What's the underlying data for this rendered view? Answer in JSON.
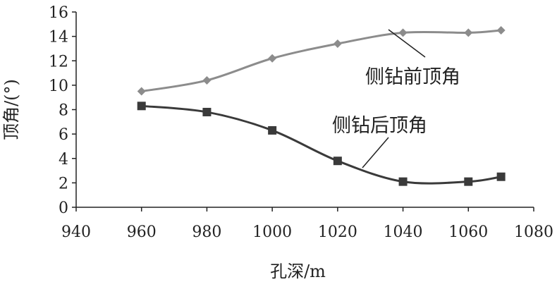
{
  "chart_data": {
    "type": "line",
    "xlabel": "孔深/m",
    "ylabel": "顶角/(°)",
    "xlim": [
      940,
      1080
    ],
    "ylim": [
      0,
      16
    ],
    "x_ticks": [
      940,
      960,
      980,
      1000,
      1020,
      1040,
      1060,
      1080
    ],
    "y_ticks": [
      0,
      2,
      4,
      6,
      8,
      10,
      12,
      14,
      16
    ],
    "grid": false,
    "legend": "none (series labeled inline with leader lines)",
    "series": [
      {
        "name": "侧钻前顶角",
        "marker": "diamond",
        "color": "#8c8c8c",
        "x": [
          960,
          980,
          1000,
          1020,
          1040,
          1060,
          1070
        ],
        "y": [
          9.5,
          10.4,
          12.2,
          13.4,
          14.3,
          14.3,
          14.5
        ]
      },
      {
        "name": "侧钻后顶角",
        "marker": "square",
        "color": "#3a3a3a",
        "x": [
          960,
          980,
          1000,
          1020,
          1040,
          1060,
          1070
        ],
        "y": [
          8.3,
          7.8,
          6.3,
          3.8,
          2.1,
          2.1,
          2.5
        ]
      }
    ]
  }
}
